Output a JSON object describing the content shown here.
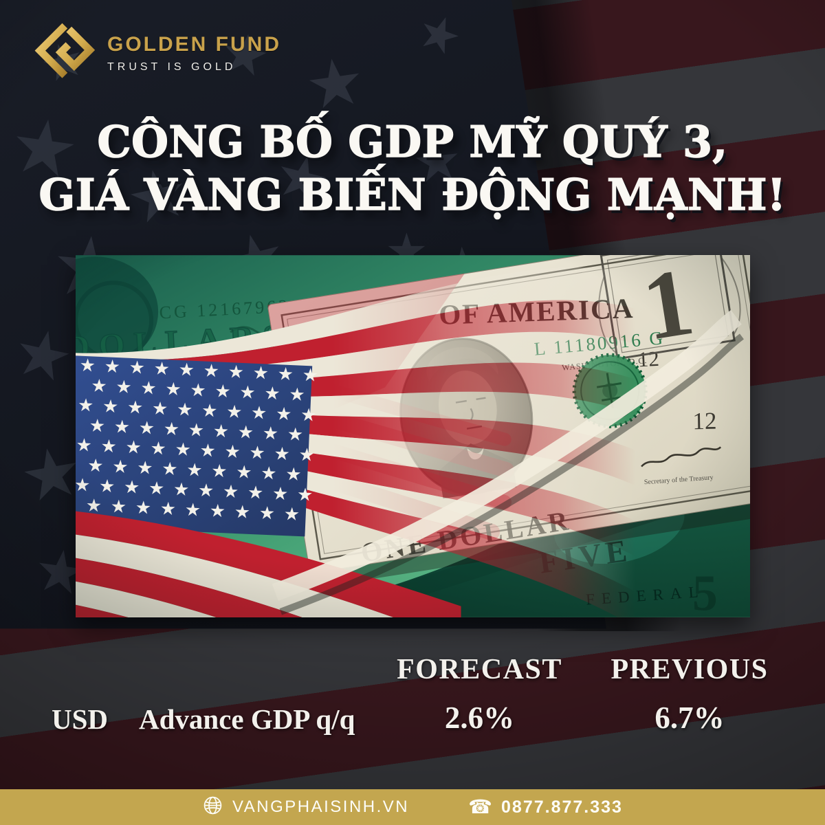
{
  "brand": {
    "name": "GOLDEN FUND",
    "tagline": "TRUST IS GOLD"
  },
  "headline": {
    "line1": "CÔNG BỐ GDP MỸ QUÝ 3,",
    "line2": "GIÁ VÀNG BIẾN ĐỘNG MẠNH!"
  },
  "stats": {
    "header_forecast": "FORECAST",
    "header_previous": "PREVIOUS",
    "row": {
      "currency": "USD",
      "event": "Advance GDP q/q",
      "forecast": "2.6%",
      "previous": "6.7%"
    }
  },
  "photo": {
    "green_serial": "CG 12167963 A",
    "green_dollars": "DOLLARS",
    "bill_top_text": "OF AMERICA",
    "bill_serial": "L 11180916 G",
    "bill_city": "WASHINGTON, D.C.",
    "bill_plate_upper": "12",
    "bill_plate_lower": "12",
    "bill_denomination": "1",
    "bill_bottom_text": "ONE DOLLAR",
    "bill_secretary": "Secretary of the Treasury",
    "five_text": "FIVE",
    "federal_text": "FEDERAL",
    "five_numeral": "5"
  },
  "footer": {
    "website": "VANGPHAISINH.VN",
    "phone": "0877.877.333"
  },
  "icons": {
    "website": "globe-icon",
    "phone": "telephone-icon",
    "phone_glyph": "☎"
  },
  "colors": {
    "footer_gold": "#c3a64f",
    "brand_gold": "#c9a24b",
    "flag_red": "#c0202f",
    "flag_white": "#ece7d8",
    "canton_blue": "#223e7b",
    "money_green": "#4fae7e"
  }
}
